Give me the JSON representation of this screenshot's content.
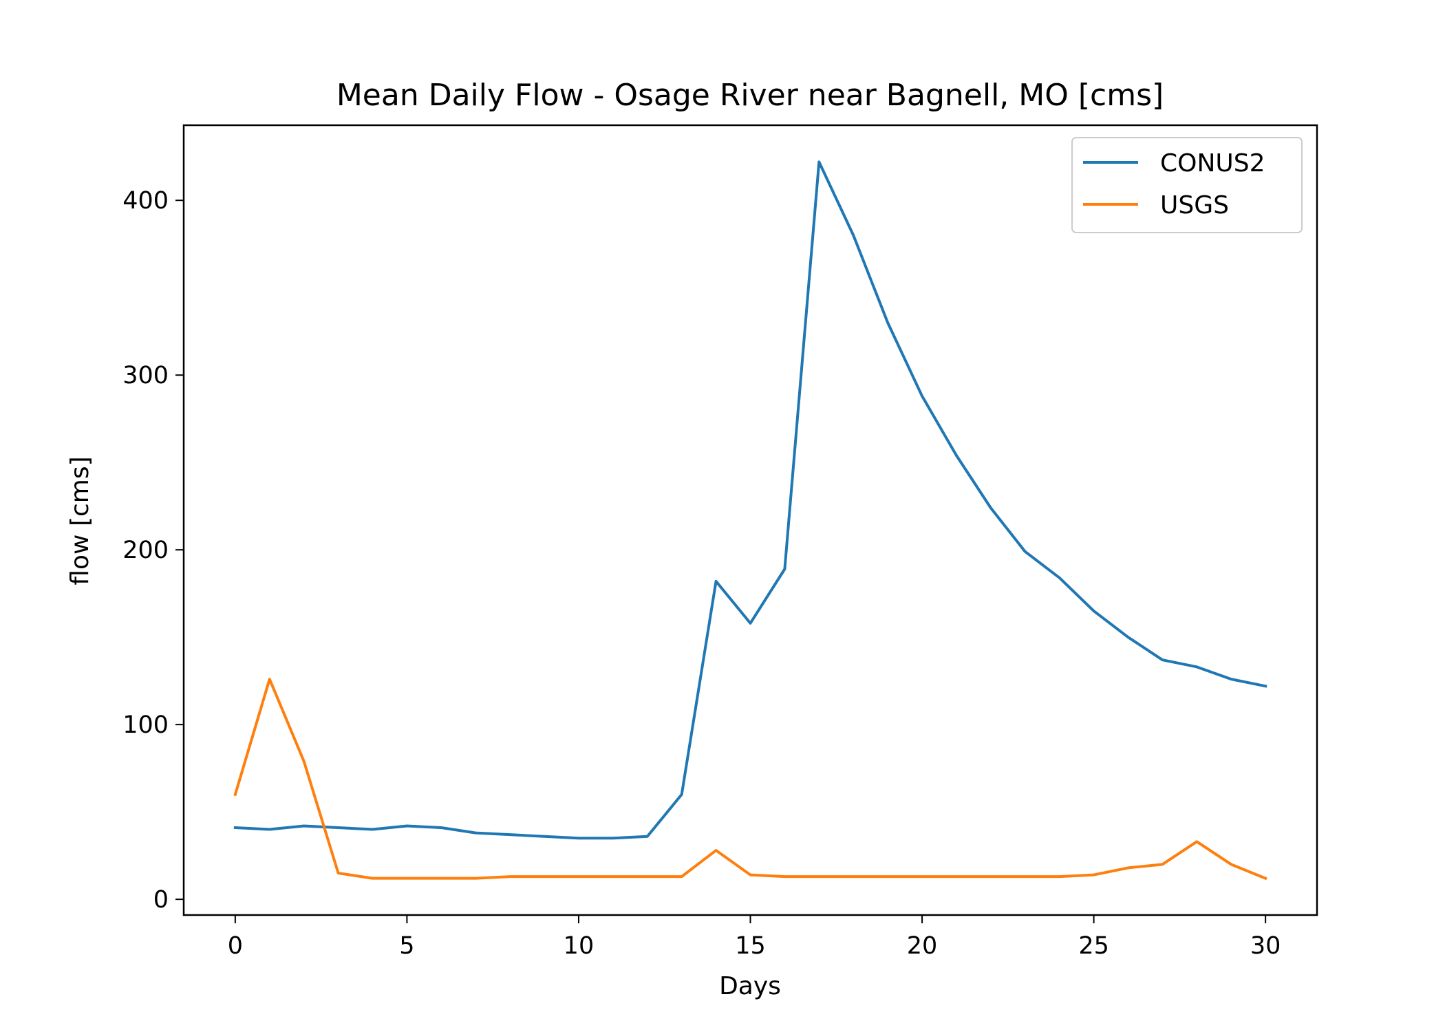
{
  "chart_data": {
    "type": "line",
    "title": "Mean Daily Flow - Osage River near Bagnell, MO [cms]",
    "xlabel": "Days",
    "ylabel": "flow [cms]",
    "xlim": [
      -1.5,
      31.5
    ],
    "ylim": [
      -9,
      443
    ],
    "xticks": [
      0,
      5,
      10,
      15,
      20,
      25,
      30
    ],
    "yticks": [
      0,
      100,
      200,
      300,
      400
    ],
    "grid": false,
    "legend_position": "top-right",
    "x": [
      0,
      1,
      2,
      3,
      4,
      5,
      6,
      7,
      8,
      9,
      10,
      11,
      12,
      13,
      14,
      15,
      16,
      17,
      18,
      19,
      20,
      21,
      22,
      23,
      24,
      25,
      26,
      27,
      28,
      29,
      30
    ],
    "series": [
      {
        "name": "CONUS2",
        "color": "#1f77b4",
        "values": [
          41,
          40,
          42,
          41,
          40,
          42,
          41,
          38,
          37,
          36,
          35,
          35,
          36,
          60,
          182,
          158,
          189,
          422,
          380,
          330,
          288,
          254,
          224,
          199,
          184,
          165,
          150,
          137,
          133,
          126,
          122
        ]
      },
      {
        "name": "USGS",
        "color": "#ff7f0e",
        "values": [
          60,
          126,
          79,
          15,
          12,
          12,
          12,
          12,
          13,
          13,
          13,
          13,
          13,
          13,
          28,
          14,
          13,
          13,
          13,
          13,
          13,
          13,
          13,
          13,
          13,
          14,
          18,
          20,
          33,
          20,
          12
        ]
      }
    ]
  }
}
